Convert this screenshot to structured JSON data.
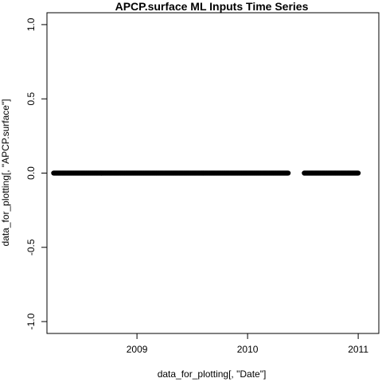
{
  "chart_data": {
    "type": "scatter",
    "title": "APCP.surface ML Inputs Time Series",
    "xlabel": "data_for_plotting[, \"Date\"]",
    "ylabel": "data_for_plotting[, \"APCP.surface\"]",
    "xlim": [
      "2008-03-10",
      "2011-03-10"
    ],
    "ylim": [
      -1.08,
      1.08
    ],
    "x_ticks": [
      "2009",
      "2010",
      "2011"
    ],
    "y_ticks": [
      "-1.0",
      "-0.5",
      "0.0",
      "0.5",
      "1.0"
    ],
    "grid": false,
    "legend": "none",
    "marker": "open-circle",
    "segments": [
      {
        "x_start": "2008-04-01",
        "x_end": "2010-05-15",
        "y": 0.0
      },
      {
        "x_start": "2010-07-07",
        "x_end": "2011-01-01",
        "y": 0.0
      }
    ],
    "colors": {
      "points": "#000000",
      "axes": "#000000",
      "background": "#ffffff"
    }
  }
}
